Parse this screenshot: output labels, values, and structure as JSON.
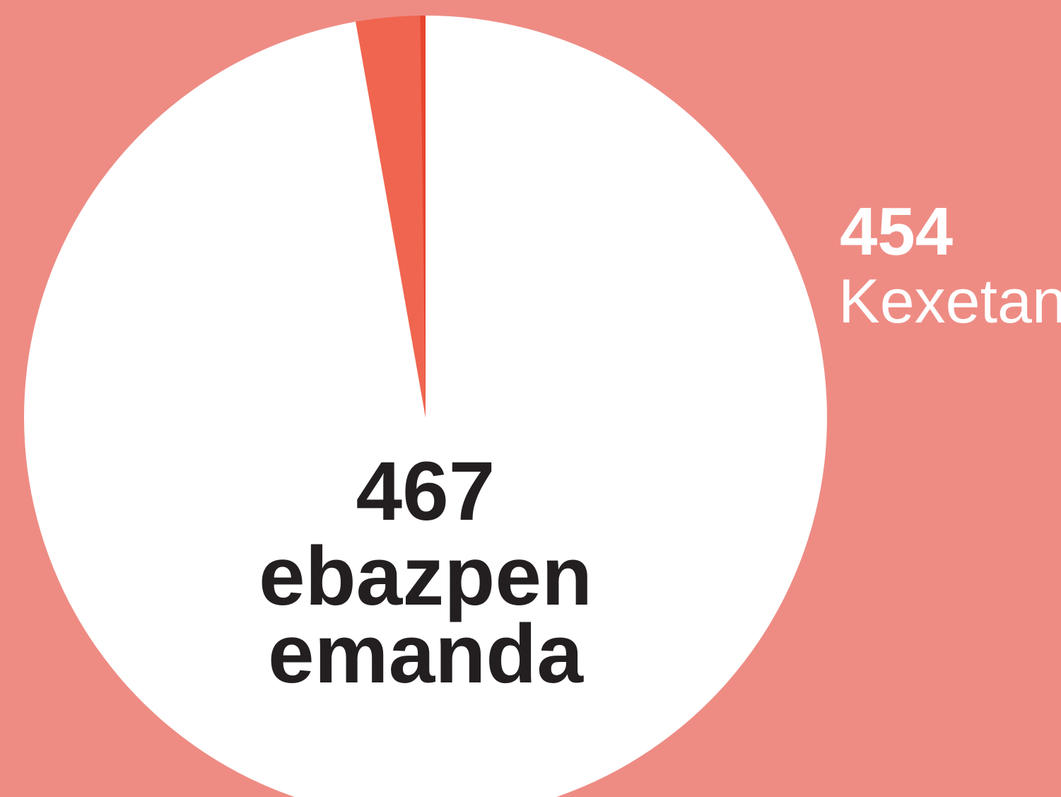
{
  "chart_data": {
    "type": "pie",
    "categories": [
      "Kexetan",
      null,
      null
    ],
    "values": [
      454,
      12,
      1
    ],
    "colors": [
      "#ffffff",
      "#f0654f",
      "#e8452e"
    ],
    "background": "#ee8c84",
    "total": {
      "value": 467,
      "lines": [
        "ebazpen",
        "emanda"
      ]
    }
  }
}
